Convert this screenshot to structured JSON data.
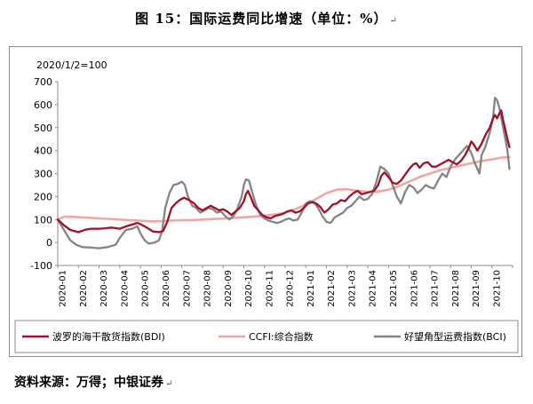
{
  "figure": {
    "title": "图 15：国际运费同比增速（单位：%）",
    "title_mark": "↵",
    "source": "资料来源：万得；中银证券",
    "source_mark": "↵"
  },
  "chart_data": {
    "type": "line",
    "note": "2020/1/2=100",
    "ylim": [
      -100,
      700
    ],
    "yticks": [
      "-100",
      "0",
      "100",
      "200",
      "300",
      "400",
      "500",
      "600",
      "700"
    ],
    "xticks": [
      "2020-01",
      "2020-02",
      "2020-03",
      "2020-04",
      "2020-05",
      "2020-06",
      "2020-07",
      "2020-08",
      "2020-09",
      "2020-10",
      "2020-11",
      "2020-12",
      "2021-01",
      "2021-02",
      "2021-03",
      "2021-04",
      "2021-05",
      "2021-06",
      "2021-07",
      "2021-08",
      "2021-09",
      "2021-10"
    ],
    "grid": false,
    "legend": "bottom",
    "series": [
      {
        "name": "波罗的海干散货指数(BDI)",
        "color": "#a0102a",
        "points": [
          [
            0.0,
            100
          ],
          [
            0.3,
            75
          ],
          [
            0.6,
            55
          ],
          [
            1.0,
            45
          ],
          [
            1.3,
            55
          ],
          [
            1.6,
            60
          ],
          [
            2.0,
            60
          ],
          [
            2.3,
            62
          ],
          [
            2.6,
            65
          ],
          [
            3.0,
            60
          ],
          [
            3.3,
            70
          ],
          [
            3.6,
            78
          ],
          [
            3.85,
            85
          ],
          [
            4.0,
            80
          ],
          [
            4.3,
            65
          ],
          [
            4.6,
            48
          ],
          [
            4.9,
            45
          ],
          [
            5.1,
            50
          ],
          [
            5.3,
            90
          ],
          [
            5.5,
            150
          ],
          [
            5.7,
            170
          ],
          [
            5.9,
            185
          ],
          [
            6.1,
            195
          ],
          [
            6.35,
            185
          ],
          [
            6.6,
            170
          ],
          [
            6.8,
            150
          ],
          [
            7.0,
            140
          ],
          [
            7.2,
            150
          ],
          [
            7.4,
            160
          ],
          [
            7.6,
            150
          ],
          [
            7.8,
            140
          ],
          [
            8.0,
            145
          ],
          [
            8.2,
            135
          ],
          [
            8.4,
            120
          ],
          [
            8.6,
            135
          ],
          [
            8.8,
            150
          ],
          [
            9.0,
            180
          ],
          [
            9.1,
            210
          ],
          [
            9.2,
            225
          ],
          [
            9.35,
            195
          ],
          [
            9.5,
            160
          ],
          [
            9.7,
            140
          ],
          [
            9.9,
            120
          ],
          [
            10.1,
            110
          ],
          [
            10.3,
            105
          ],
          [
            10.5,
            115
          ],
          [
            10.7,
            120
          ],
          [
            10.9,
            125
          ],
          [
            11.1,
            135
          ],
          [
            11.3,
            140
          ],
          [
            11.5,
            130
          ],
          [
            11.7,
            135
          ],
          [
            11.9,
            150
          ],
          [
            12.1,
            170
          ],
          [
            12.3,
            175
          ],
          [
            12.5,
            170
          ],
          [
            12.7,
            155
          ],
          [
            12.9,
            130
          ],
          [
            13.1,
            145
          ],
          [
            13.3,
            165
          ],
          [
            13.5,
            170
          ],
          [
            13.7,
            185
          ],
          [
            13.9,
            180
          ],
          [
            14.1,
            200
          ],
          [
            14.3,
            215
          ],
          [
            14.5,
            225
          ],
          [
            14.7,
            210
          ],
          [
            14.9,
            215
          ],
          [
            15.1,
            220
          ],
          [
            15.3,
            225
          ],
          [
            15.5,
            250
          ],
          [
            15.65,
            290
          ],
          [
            15.8,
            305
          ],
          [
            16.0,
            285
          ],
          [
            16.2,
            260
          ],
          [
            16.4,
            255
          ],
          [
            16.6,
            270
          ],
          [
            16.8,
            295
          ],
          [
            17.0,
            320
          ],
          [
            17.2,
            340
          ],
          [
            17.35,
            345
          ],
          [
            17.5,
            325
          ],
          [
            17.7,
            345
          ],
          [
            17.9,
            350
          ],
          [
            18.1,
            330
          ],
          [
            18.3,
            330
          ],
          [
            18.5,
            340
          ],
          [
            18.7,
            350
          ],
          [
            18.9,
            360
          ],
          [
            19.1,
            350
          ],
          [
            19.3,
            340
          ],
          [
            19.5,
            355
          ],
          [
            19.7,
            380
          ],
          [
            19.9,
            415
          ],
          [
            20.0,
            440
          ],
          [
            20.1,
            430
          ],
          [
            20.3,
            400
          ],
          [
            20.5,
            430
          ],
          [
            20.7,
            470
          ],
          [
            20.9,
            500
          ],
          [
            21.05,
            540
          ],
          [
            21.15,
            555
          ],
          [
            21.25,
            540
          ],
          [
            21.35,
            560
          ],
          [
            21.45,
            575
          ],
          [
            21.55,
            530
          ],
          [
            21.65,
            490
          ],
          [
            21.75,
            450
          ],
          [
            21.85,
            415
          ]
        ]
      },
      {
        "name": "CCFI:综合指数",
        "color": "#f0a7a2",
        "points": [
          [
            0.0,
            100
          ],
          [
            0.3,
            112
          ],
          [
            0.7,
            112
          ],
          [
            1.0,
            110
          ],
          [
            1.5,
            108
          ],
          [
            2.0,
            105
          ],
          [
            2.5,
            103
          ],
          [
            3.0,
            100
          ],
          [
            3.5,
            97
          ],
          [
            4.0,
            95
          ],
          [
            4.5,
            92
          ],
          [
            5.0,
            93
          ],
          [
            5.5,
            95
          ],
          [
            6.0,
            97
          ],
          [
            6.5,
            98
          ],
          [
            7.0,
            100
          ],
          [
            7.5,
            102
          ],
          [
            8.0,
            104
          ],
          [
            8.5,
            107
          ],
          [
            9.0,
            110
          ],
          [
            9.5,
            113
          ],
          [
            10.0,
            117
          ],
          [
            10.5,
            122
          ],
          [
            11.0,
            130
          ],
          [
            11.5,
            145
          ],
          [
            12.0,
            165
          ],
          [
            12.5,
            190
          ],
          [
            13.0,
            215
          ],
          [
            13.5,
            230
          ],
          [
            14.0,
            232
          ],
          [
            14.5,
            225
          ],
          [
            15.0,
            220
          ],
          [
            15.5,
            222
          ],
          [
            16.0,
            230
          ],
          [
            16.5,
            245
          ],
          [
            17.0,
            265
          ],
          [
            17.5,
            285
          ],
          [
            18.0,
            300
          ],
          [
            18.5,
            315
          ],
          [
            19.0,
            325
          ],
          [
            19.5,
            335
          ],
          [
            20.0,
            345
          ],
          [
            20.5,
            355
          ],
          [
            21.0,
            362
          ],
          [
            21.5,
            370
          ],
          [
            21.85,
            372
          ]
        ]
      },
      {
        "name": "好望角型运费指数(BCI)",
        "color": "#848484",
        "points": [
          [
            0.0,
            100
          ],
          [
            0.3,
            55
          ],
          [
            0.6,
            10
          ],
          [
            0.9,
            -10
          ],
          [
            1.2,
            -20
          ],
          [
            1.6,
            -22
          ],
          [
            2.0,
            -25
          ],
          [
            2.4,
            -20
          ],
          [
            2.8,
            -10
          ],
          [
            3.0,
            20
          ],
          [
            3.3,
            55
          ],
          [
            3.6,
            60
          ],
          [
            3.85,
            70
          ],
          [
            4.0,
            40
          ],
          [
            4.2,
            10
          ],
          [
            4.4,
            -5
          ],
          [
            4.7,
            0
          ],
          [
            4.9,
            10
          ],
          [
            5.05,
            50
          ],
          [
            5.2,
            150
          ],
          [
            5.4,
            215
          ],
          [
            5.6,
            250
          ],
          [
            5.8,
            255
          ],
          [
            6.0,
            265
          ],
          [
            6.15,
            250
          ],
          [
            6.3,
            200
          ],
          [
            6.5,
            160
          ],
          [
            6.7,
            150
          ],
          [
            6.9,
            130
          ],
          [
            7.1,
            140
          ],
          [
            7.3,
            150
          ],
          [
            7.5,
            145
          ],
          [
            7.7,
            130
          ],
          [
            7.9,
            135
          ],
          [
            8.1,
            115
          ],
          [
            8.3,
            100
          ],
          [
            8.5,
            115
          ],
          [
            8.7,
            150
          ],
          [
            8.9,
            200
          ],
          [
            9.0,
            250
          ],
          [
            9.1,
            275
          ],
          [
            9.25,
            270
          ],
          [
            9.4,
            220
          ],
          [
            9.6,
            160
          ],
          [
            9.8,
            120
          ],
          [
            10.0,
            105
          ],
          [
            10.2,
            95
          ],
          [
            10.4,
            90
          ],
          [
            10.6,
            85
          ],
          [
            10.8,
            90
          ],
          [
            11.0,
            100
          ],
          [
            11.2,
            105
          ],
          [
            11.4,
            95
          ],
          [
            11.6,
            100
          ],
          [
            11.8,
            130
          ],
          [
            12.0,
            170
          ],
          [
            12.2,
            180
          ],
          [
            12.4,
            175
          ],
          [
            12.6,
            150
          ],
          [
            12.8,
            115
          ],
          [
            13.0,
            90
          ],
          [
            13.2,
            85
          ],
          [
            13.4,
            110
          ],
          [
            13.6,
            120
          ],
          [
            13.8,
            130
          ],
          [
            14.0,
            150
          ],
          [
            14.2,
            160
          ],
          [
            14.4,
            180
          ],
          [
            14.6,
            200
          ],
          [
            14.8,
            185
          ],
          [
            15.0,
            190
          ],
          [
            15.2,
            210
          ],
          [
            15.4,
            260
          ],
          [
            15.6,
            330
          ],
          [
            15.8,
            320
          ],
          [
            16.0,
            300
          ],
          [
            16.2,
            250
          ],
          [
            16.4,
            200
          ],
          [
            16.6,
            170
          ],
          [
            16.8,
            220
          ],
          [
            17.0,
            250
          ],
          [
            17.2,
            240
          ],
          [
            17.4,
            215
          ],
          [
            17.6,
            230
          ],
          [
            17.8,
            250
          ],
          [
            18.0,
            240
          ],
          [
            18.2,
            235
          ],
          [
            18.4,
            270
          ],
          [
            18.6,
            300
          ],
          [
            18.8,
            285
          ],
          [
            19.0,
            330
          ],
          [
            19.2,
            360
          ],
          [
            19.4,
            380
          ],
          [
            19.6,
            400
          ],
          [
            19.8,
            420
          ],
          [
            20.0,
            390
          ],
          [
            20.2,
            340
          ],
          [
            20.4,
            300
          ],
          [
            20.5,
            380
          ],
          [
            20.7,
            420
          ],
          [
            20.9,
            480
          ],
          [
            21.05,
            540
          ],
          [
            21.15,
            630
          ],
          [
            21.25,
            620
          ],
          [
            21.35,
            590
          ],
          [
            21.5,
            520
          ],
          [
            21.65,
            450
          ],
          [
            21.75,
            400
          ],
          [
            21.85,
            320
          ]
        ]
      }
    ]
  }
}
